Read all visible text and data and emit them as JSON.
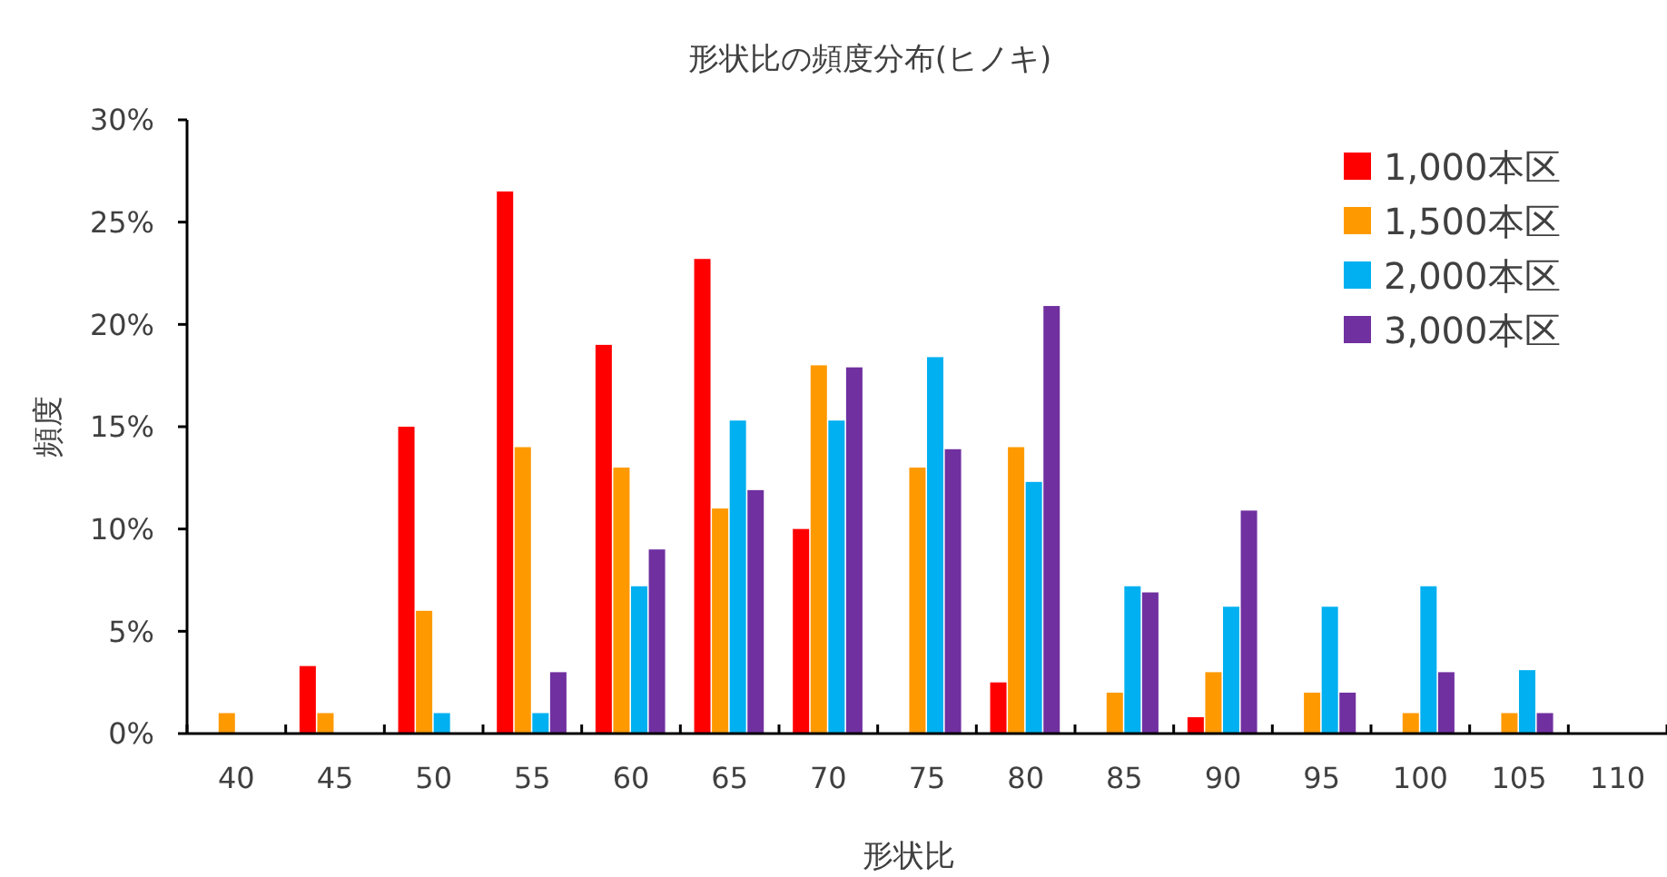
{
  "chart_data": {
    "type": "bar",
    "title": "形状比の頻度分布(ヒノキ)",
    "xlabel": "形状比",
    "ylabel": "頻度",
    "categories": [
      "40",
      "45",
      "50",
      "55",
      "60",
      "65",
      "70",
      "75",
      "80",
      "85",
      "90",
      "95",
      "100",
      "105",
      "110"
    ],
    "series": [
      {
        "name": "1,000本区",
        "color": "#ff0000",
        "values": [
          null,
          3.3,
          15,
          26.5,
          19,
          23.2,
          10,
          null,
          2.5,
          null,
          0.8,
          null,
          null,
          null,
          null
        ]
      },
      {
        "name": "1,500本区",
        "color": "#ff9900",
        "values": [
          1,
          1,
          6,
          14,
          13,
          11,
          18,
          13,
          14,
          2,
          3,
          2,
          1,
          1,
          null
        ]
      },
      {
        "name": "2,000本区",
        "color": "#00b0f0",
        "values": [
          null,
          null,
          1,
          1,
          7.2,
          15.3,
          15.3,
          18.4,
          12.3,
          7.2,
          6.2,
          6.2,
          7.2,
          3.1,
          null
        ]
      },
      {
        "name": "3,000本区",
        "color": "#7030a0",
        "values": [
          null,
          null,
          null,
          3,
          9,
          11.9,
          17.9,
          13.9,
          20.9,
          6.9,
          10.9,
          2,
          3,
          1,
          null
        ]
      }
    ],
    "ylim": [
      0,
      30
    ],
    "yticks": [
      {
        "value": 0,
        "label": "0%"
      },
      {
        "value": 5,
        "label": "5%"
      },
      {
        "value": 10,
        "label": "10%"
      },
      {
        "value": 15,
        "label": "15%"
      },
      {
        "value": 20,
        "label": "20%"
      },
      {
        "value": 25,
        "label": "25%"
      },
      {
        "value": 30,
        "label": "30%"
      }
    ],
    "grid": false,
    "legend": "top right"
  }
}
